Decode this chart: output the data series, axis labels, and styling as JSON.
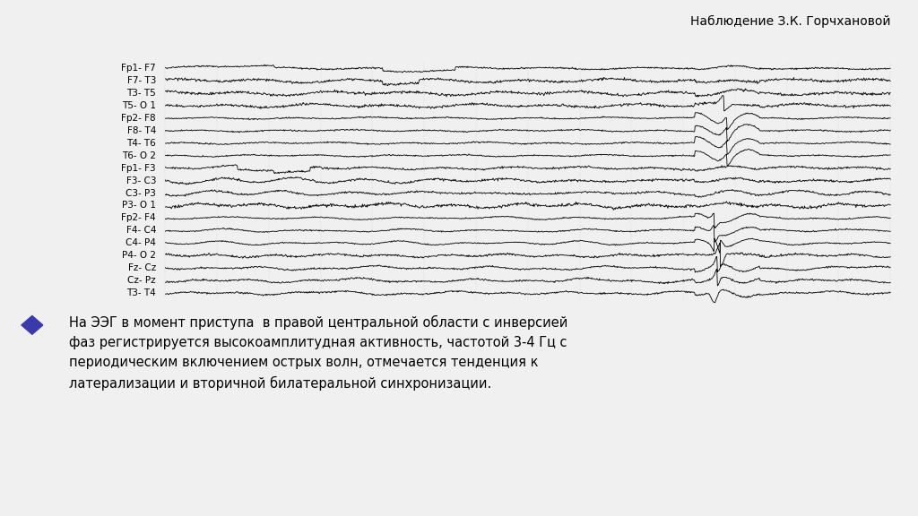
{
  "title": "Наблюдение З.К. Горчхановой",
  "channels": [
    "Fp1- F7",
    "F7- T3",
    "T3- T5",
    "T5- O 1",
    "Fp2- F8",
    "F8- T4",
    "T4- T6",
    "T6- O 2",
    "Fp1- F3",
    "F3- C3",
    "C3- P3",
    "P3- O 1",
    "Fp2- F4",
    "F4- C4",
    "C4- P4",
    "P4- O 2",
    "Fz- Cz",
    "Cz- Pz",
    "T3- T4"
  ],
  "annotation": "На ЭЭГ в момент приступа  в правой центральной области с инверсией\nфаз регистрируется высокоамплитудная активность, частотой 3-4 Гц с\nпериодическим включением острых волн, отмечается тенденция к\nлатерализации и вторичной билатеральной синхронизации.",
  "bg_color": "#f0f0f0",
  "line_color": "#000000",
  "text_color": "#000000",
  "diamond_color": "#3a3aaa"
}
